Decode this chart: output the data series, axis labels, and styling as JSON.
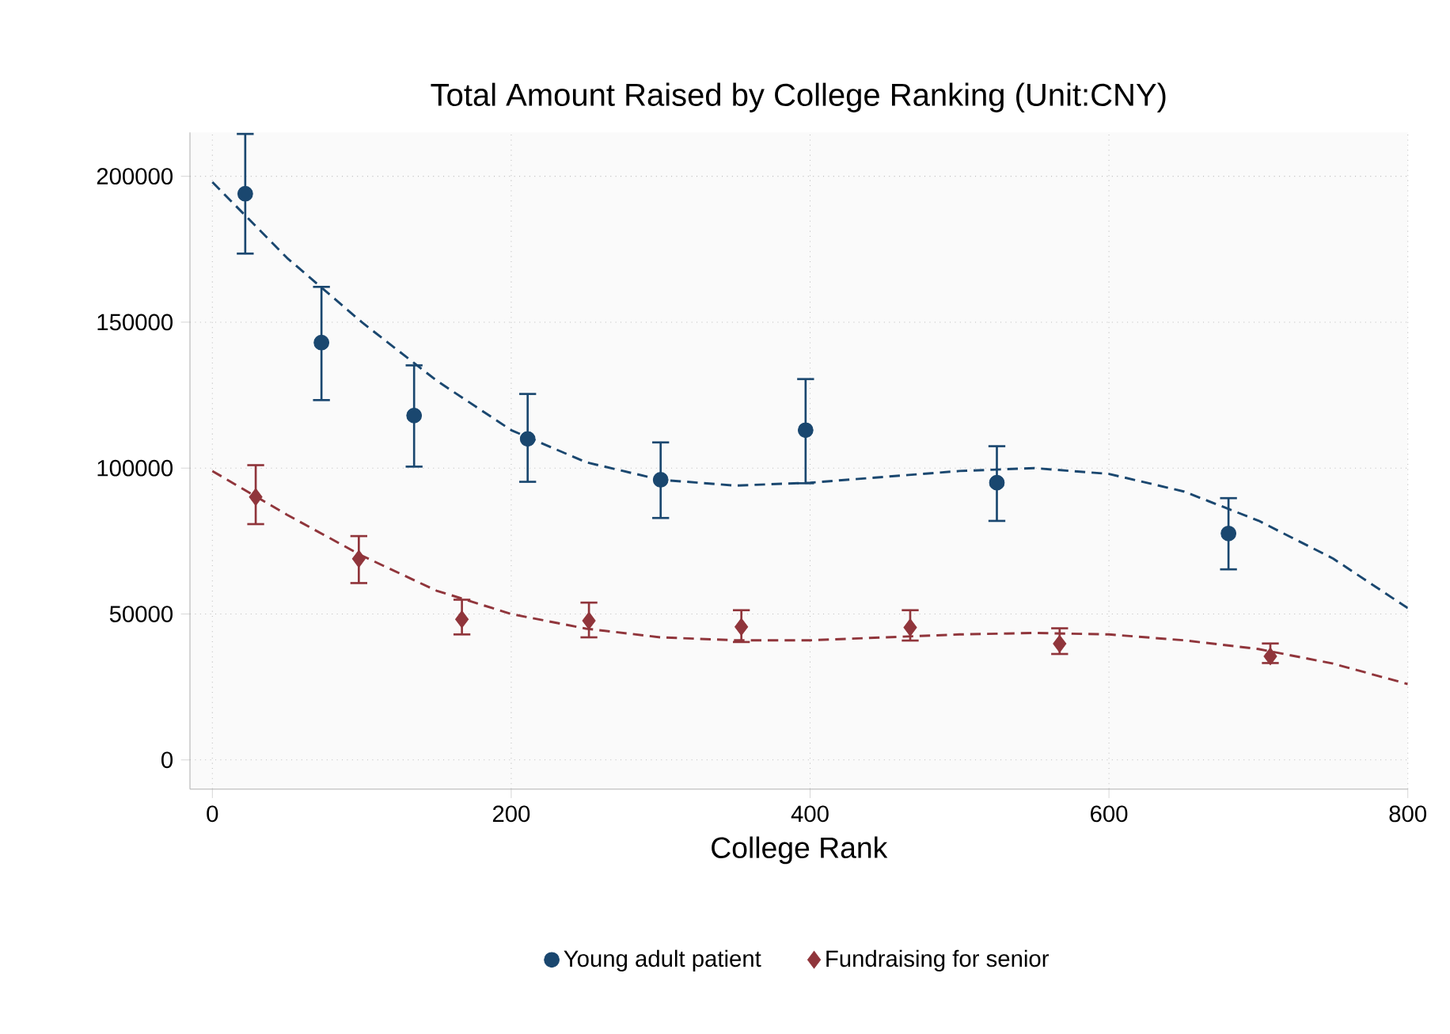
{
  "chart_data": {
    "type": "scatter",
    "title": "Total Amount Raised by College Ranking (Unit:CNY)",
    "xlabel": "College Rank",
    "xlim": [
      -15,
      800
    ],
    "ylim": [
      -10000,
      215000
    ],
    "xticks": [
      0,
      200,
      400,
      600,
      800
    ],
    "yticks": [
      0,
      50000,
      100000,
      150000,
      200000
    ],
    "grid": true,
    "legend": "bottom",
    "series": [
      {
        "name": "Young adult patient",
        "color": "#1a476f",
        "marker": "circle",
        "x": [
          22,
          73,
          135,
          211,
          300,
          397,
          525,
          680
        ],
        "values": [
          194000,
          143000,
          118000,
          110000,
          96000,
          113000,
          95000,
          77600
        ],
        "errors": [
          [
            173500,
            214500
          ],
          [
            123300,
            162100
          ],
          [
            100500,
            135200
          ],
          [
            95300,
            125400
          ],
          [
            82900,
            108800
          ],
          [
            94800,
            130500
          ],
          [
            81900,
            107500
          ],
          [
            65300,
            89700
          ]
        ]
      },
      {
        "name": "Fundraising for senior",
        "color": "#90353b",
        "marker": "diamond",
        "x": [
          29,
          98,
          167,
          252,
          354,
          467,
          567,
          708
        ],
        "values": [
          90100,
          68900,
          48200,
          47700,
          45600,
          45400,
          39800,
          35500
        ],
        "errors": [
          [
            80800,
            101000
          ],
          [
            60600,
            76700
          ],
          [
            43000,
            54900
          ],
          [
            42000,
            53900
          ],
          [
            40400,
            51300
          ],
          [
            40900,
            51300
          ],
          [
            36300,
            45100
          ],
          [
            33200,
            39900
          ]
        ]
      },
      {
        "type": "line",
        "color": "#1a476f",
        "line_style": "dashed",
        "marker": "none",
        "x": [
          0,
          50,
          100,
          150,
          200,
          250,
          300,
          350,
          400,
          450,
          500,
          550,
          600,
          650,
          700,
          750,
          800
        ],
        "values": [
          198000,
          172000,
          150000,
          130000,
          113000,
          102000,
          96000,
          94000,
          95000,
          97000,
          99000,
          100000,
          98000,
          92000,
          82000,
          69000,
          52000
        ]
      },
      {
        "type": "line",
        "color": "#90353b",
        "line_style": "dashed",
        "marker": "none",
        "x": [
          0,
          50,
          100,
          150,
          200,
          250,
          300,
          350,
          400,
          450,
          500,
          550,
          600,
          650,
          700,
          750,
          800
        ],
        "values": [
          99000,
          84000,
          70000,
          58000,
          50000,
          45000,
          42000,
          41000,
          41000,
          42000,
          43000,
          43500,
          43000,
          41000,
          38000,
          33000,
          26000
        ]
      }
    ]
  }
}
